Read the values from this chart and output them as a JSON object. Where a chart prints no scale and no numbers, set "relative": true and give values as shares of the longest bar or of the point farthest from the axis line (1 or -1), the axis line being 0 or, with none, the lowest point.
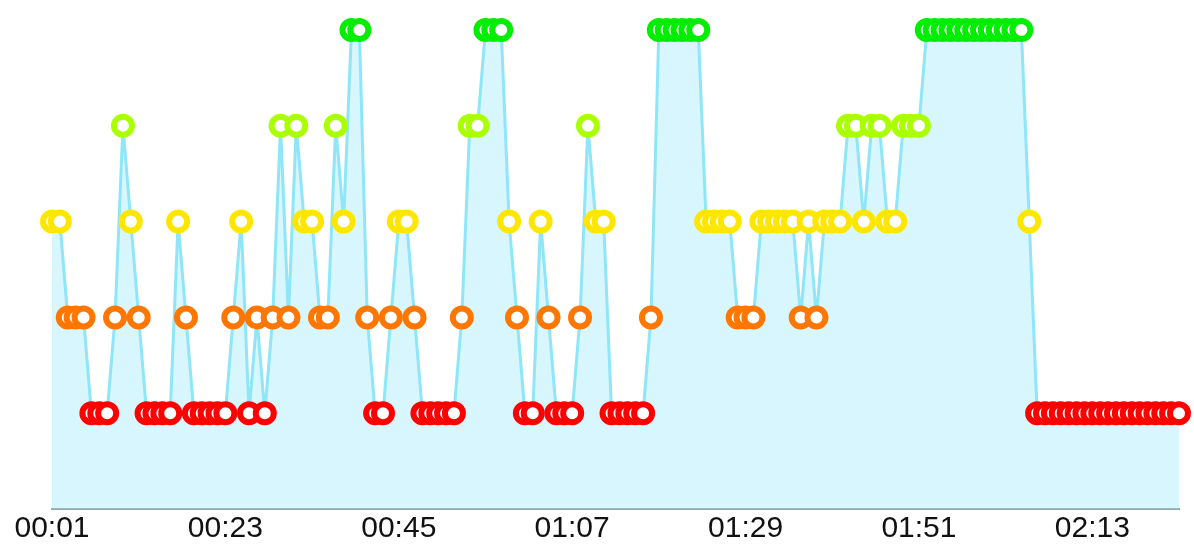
{
  "chart_data": {
    "type": "area",
    "relative": true,
    "marker": "circle",
    "color": "#8ee6f8",
    "xlim": [
      1,
      144
    ],
    "xticks": [
      {
        "value": 1,
        "label": "00:01"
      },
      {
        "value": 23,
        "label": "00:23"
      },
      {
        "value": 45,
        "label": "00:45"
      },
      {
        "value": 67,
        "label": "01:07"
      },
      {
        "value": 89,
        "label": "01:29"
      },
      {
        "value": 111,
        "label": "01:51"
      },
      {
        "value": 133,
        "label": "02:13"
      }
    ],
    "x": [
      1,
      2,
      3,
      4,
      5,
      6,
      7,
      8,
      9,
      10,
      11,
      12,
      13,
      14,
      15,
      16,
      17,
      18,
      19,
      20,
      21,
      22,
      23,
      24,
      25,
      26,
      27,
      28,
      29,
      30,
      31,
      32,
      33,
      34,
      35,
      36,
      37,
      38,
      39,
      40,
      41,
      42,
      43,
      44,
      45,
      46,
      47,
      48,
      49,
      50,
      51,
      52,
      53,
      54,
      55,
      56,
      57,
      58,
      59,
      60,
      61,
      62,
      63,
      64,
      65,
      66,
      67,
      68,
      69,
      70,
      71,
      72,
      73,
      74,
      75,
      76,
      77,
      78,
      79,
      80,
      81,
      82,
      83,
      84,
      85,
      86,
      87,
      88,
      89,
      90,
      91,
      92,
      93,
      94,
      95,
      96,
      97,
      98,
      99,
      100,
      101,
      102,
      103,
      104,
      105,
      106,
      107,
      108,
      109,
      110,
      111,
      112,
      113,
      114,
      115,
      116,
      117,
      118,
      119,
      120,
      121,
      122,
      123,
      124,
      125,
      126,
      127,
      128,
      129,
      130,
      131,
      132,
      133,
      134,
      135,
      136,
      137,
      138,
      139,
      140,
      141,
      142,
      143,
      144
    ],
    "values": [
      0.6,
      0.6,
      0.4,
      0.4,
      0.4,
      0.2,
      0.2,
      0.2,
      0.4,
      0.8,
      0.6,
      0.4,
      0.2,
      0.2,
      0.2,
      0.2,
      0.6,
      0.4,
      0.2,
      0.2,
      0.2,
      0.2,
      0.2,
      0.4,
      0.6,
      0.2,
      0.4,
      0.2,
      0.4,
      0.8,
      0.4,
      0.8,
      0.6,
      0.6,
      0.4,
      0.4,
      0.8,
      0.6,
      1,
      1,
      0.4,
      0.2,
      0.2,
      0.4,
      0.6,
      0.6,
      0.4,
      0.2,
      0.2,
      0.2,
      0.2,
      0.2,
      0.4,
      0.8,
      0.8,
      1,
      1,
      1,
      0.6,
      0.4,
      0.2,
      0.2,
      0.6,
      0.4,
      0.2,
      0.2,
      0.2,
      0.4,
      0.8,
      0.6,
      0.6,
      0.2,
      0.2,
      0.2,
      0.2,
      0.2,
      0.4,
      1,
      1,
      1,
      1,
      1,
      1,
      0.6,
      0.6,
      0.6,
      0.6,
      0.4,
      0.4,
      0.4,
      0.6,
      0.6,
      0.6,
      0.6,
      0.6,
      0.4,
      0.6,
      0.4,
      0.6,
      0.6,
      0.6,
      0.8,
      0.8,
      0.6,
      0.8,
      0.8,
      0.6,
      0.6,
      0.8,
      0.8,
      0.8,
      1,
      1,
      1,
      1,
      1,
      1,
      1,
      1,
      1,
      1,
      1,
      1,
      1,
      0.6,
      0.2,
      0.2,
      0.2,
      0.2,
      0.2,
      0.2,
      0.2,
      0.2,
      0.2,
      0.2,
      0.2,
      0.2,
      0.2,
      0.2,
      0.2,
      0.2,
      0.2,
      0.2,
      0.2
    ],
    "colors": [
      "#ffe600",
      "#ffe600",
      "#ff7700",
      "#ff7700",
      "#ff7700",
      "#ff0000",
      "#ff0000",
      "#ff0000",
      "#ff7700",
      "#aaff00",
      "#ffe600",
      "#ff7700",
      "#ff0000",
      "#ff0000",
      "#ff0000",
      "#ff0000",
      "#ffe600",
      "#ff7700",
      "#ff0000",
      "#ff0000",
      "#ff0000",
      "#ff0000",
      "#ff0000",
      "#ff7700",
      "#ffe600",
      "#ff0000",
      "#ff7700",
      "#ff0000",
      "#ff7700",
      "#aaff00",
      "#ff7700",
      "#aaff00",
      "#ffe600",
      "#ffe600",
      "#ff7700",
      "#ff7700",
      "#aaff00",
      "#ffe600",
      "#00ee00",
      "#00ee00",
      "#ff7700",
      "#ff0000",
      "#ff0000",
      "#ff7700",
      "#ffe600",
      "#ffe600",
      "#ff7700",
      "#ff0000",
      "#ff0000",
      "#ff0000",
      "#ff0000",
      "#ff0000",
      "#ff7700",
      "#aaff00",
      "#aaff00",
      "#00ee00",
      "#00ee00",
      "#00ee00",
      "#ffe600",
      "#ff7700",
      "#ff0000",
      "#ff0000",
      "#ffe600",
      "#ff7700",
      "#ff0000",
      "#ff0000",
      "#ff0000",
      "#ff7700",
      "#aaff00",
      "#ffe600",
      "#ffe600",
      "#ff0000",
      "#ff0000",
      "#ff0000",
      "#ff0000",
      "#ff0000",
      "#ff7700",
      "#00ee00",
      "#00ee00",
      "#00ee00",
      "#00ee00",
      "#00ee00",
      "#00ee00",
      "#ffe600",
      "#ffe600",
      "#ffe600",
      "#ffe600",
      "#ff7700",
      "#ff7700",
      "#ff7700",
      "#ffe600",
      "#ffe600",
      "#ffe600",
      "#ffe600",
      "#ffe600",
      "#ff7700",
      "#ffe600",
      "#ff7700",
      "#ffe600",
      "#ffe600",
      "#ffe600",
      "#aaff00",
      "#aaff00",
      "#ffe600",
      "#aaff00",
      "#aaff00",
      "#ffe600",
      "#ffe600",
      "#aaff00",
      "#aaff00",
      "#aaff00",
      "#00ee00",
      "#00ee00",
      "#00ee00",
      "#00ee00",
      "#00ee00",
      "#00ee00",
      "#00ee00",
      "#00ee00",
      "#00ee00",
      "#00ee00",
      "#00ee00",
      "#00ee00",
      "#00ee00",
      "#ffe600",
      "#ff0000",
      "#ff0000",
      "#ff0000",
      "#ff0000",
      "#ff0000",
      "#ff0000",
      "#ff0000",
      "#ff0000",
      "#ff0000",
      "#ff0000",
      "#ff0000",
      "#ff0000",
      "#ff0000",
      "#ff0000",
      "#ff0000",
      "#ff0000",
      "#ff0000",
      "#ff0000",
      "#ff0000"
    ]
  }
}
